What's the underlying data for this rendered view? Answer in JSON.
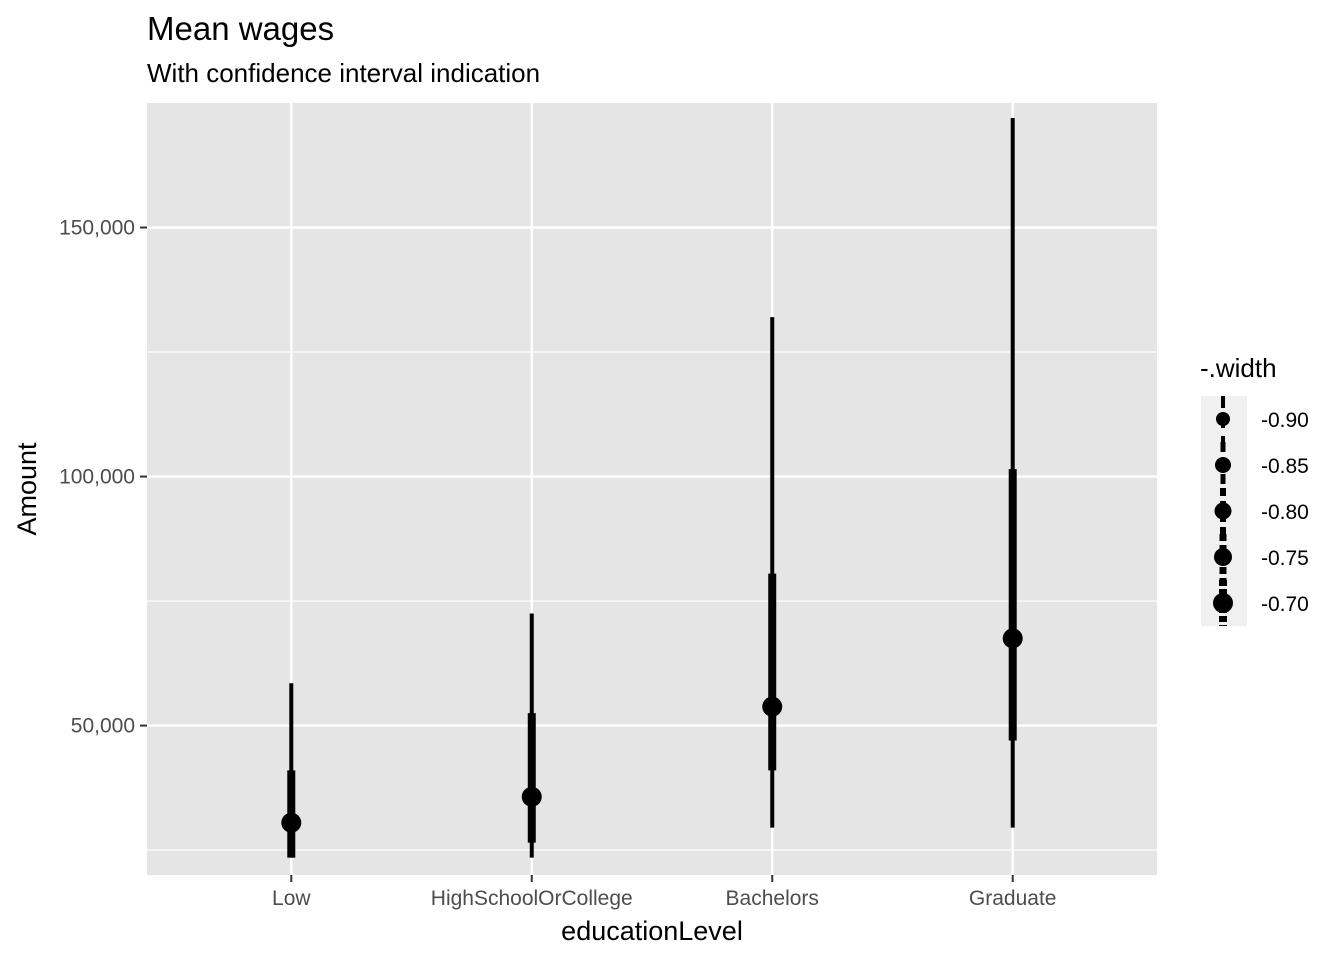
{
  "chart_data": {
    "type": "pointinterval",
    "title": "Mean wages",
    "subtitle": "With confidence interval indication",
    "xlabel": "educationLevel",
    "ylabel": "Amount",
    "categories": [
      "Low",
      "HighSchoolOrCollege",
      "Bachelors",
      "Graduate"
    ],
    "ylim": [
      20000,
      175000
    ],
    "y_ticks": [
      50000,
      100000,
      150000
    ],
    "y_tick_labels": [
      "50,000",
      "100,000",
      "150,000"
    ],
    "y_minor_ticks": [
      25000,
      75000,
      125000
    ],
    "points": [
      {
        "category": "Low",
        "mean": 30500,
        "inner": [
          23500,
          41000
        ],
        "outer": [
          23500,
          58500
        ]
      },
      {
        "category": "HighSchoolOrCollege",
        "mean": 35700,
        "inner": [
          26500,
          52500
        ],
        "outer": [
          23500,
          72500
        ]
      },
      {
        "category": "Bachelors",
        "mean": 53800,
        "inner": [
          41000,
          80500
        ],
        "outer": [
          29500,
          132000
        ]
      },
      {
        "category": "Graduate",
        "mean": 67500,
        "inner": [
          47000,
          101500
        ],
        "outer": [
          29500,
          172000
        ]
      }
    ],
    "legend": {
      "title": "-.width",
      "position": "right",
      "entries": [
        "-0.90",
        "-0.85",
        "-0.80",
        "-0.75",
        "-0.70"
      ]
    },
    "colors": {
      "panel": "#e5e5e5",
      "grid": "#ffffff",
      "mark": "#000000",
      "legend_key": "#f0f0f0"
    },
    "grid": true
  }
}
